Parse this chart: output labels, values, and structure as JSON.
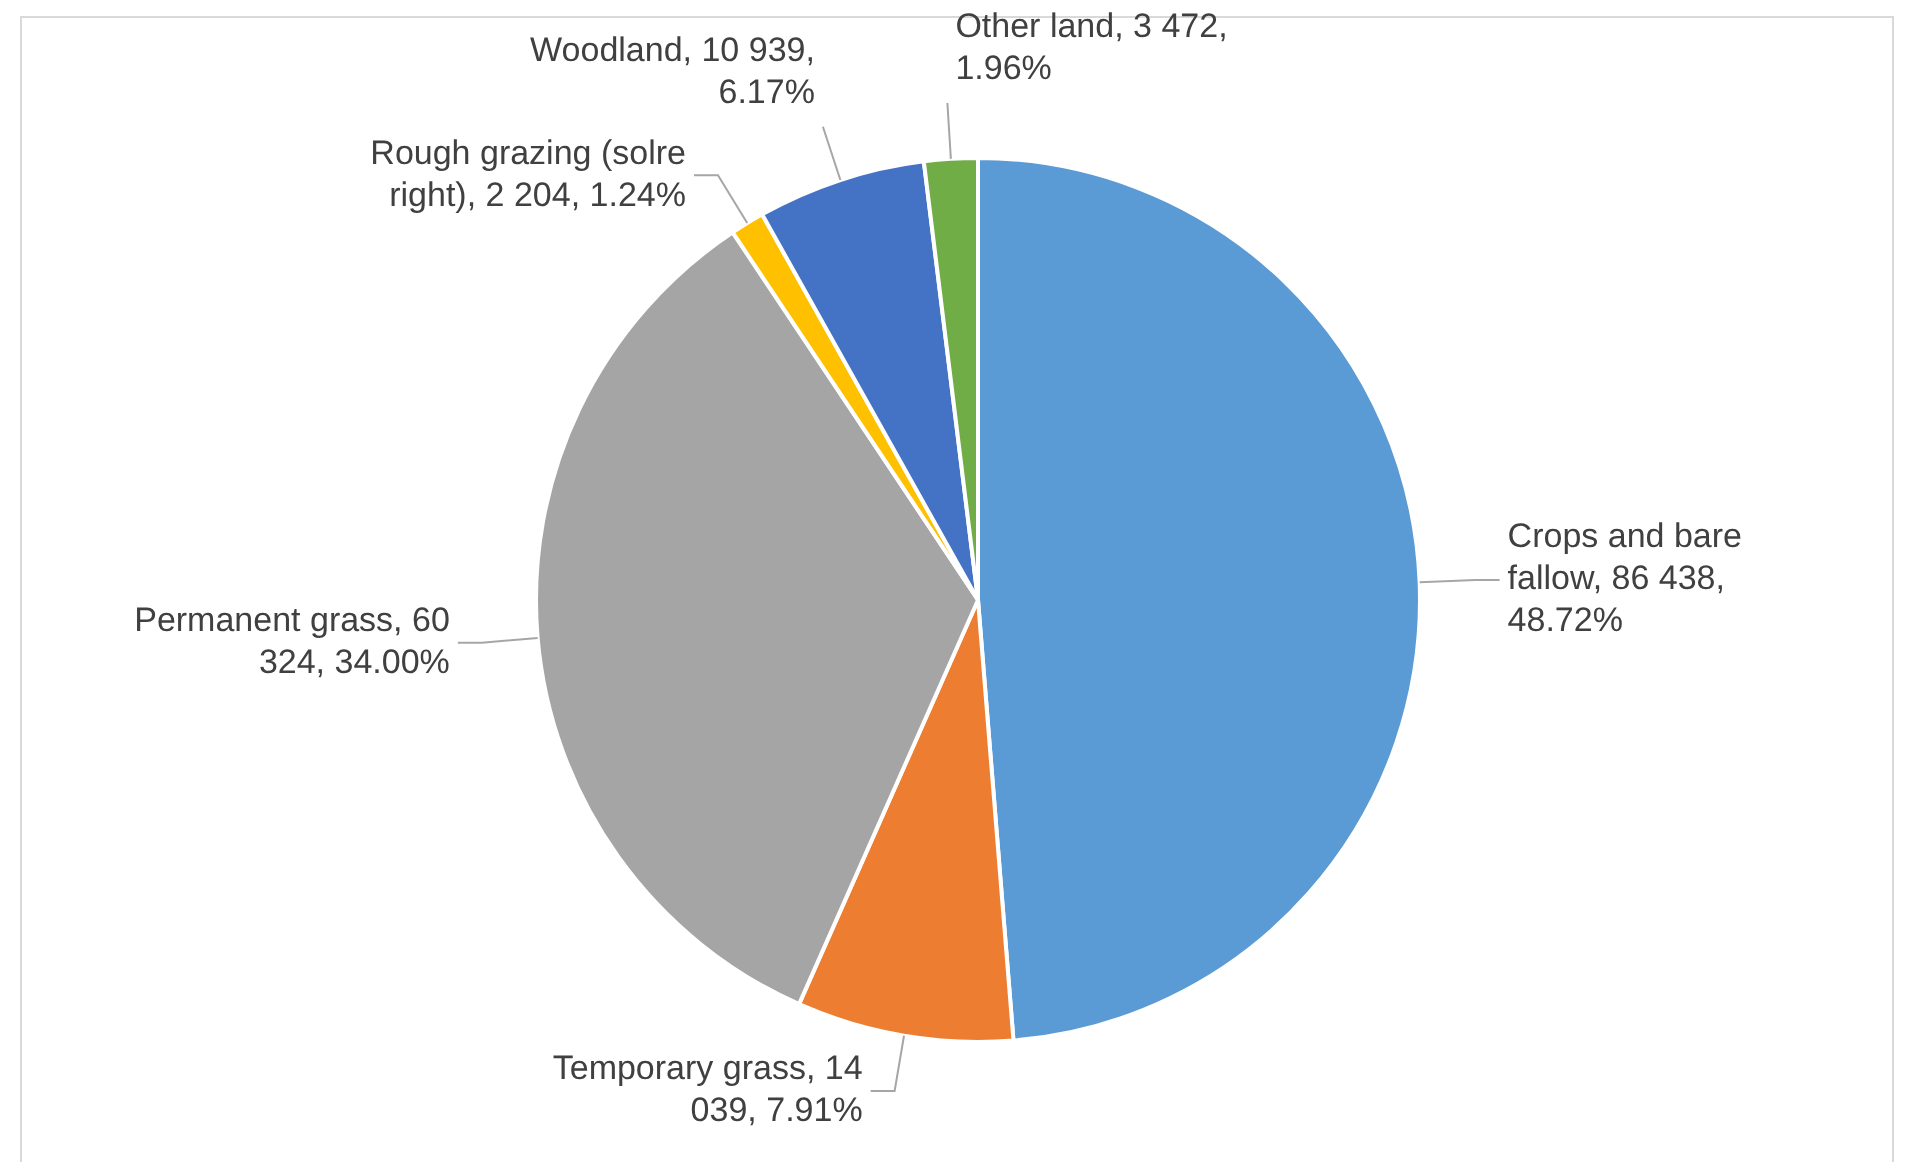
{
  "chart_data": {
    "type": "pie",
    "categories": [
      "Crops and bare fallow",
      "Temporary grass",
      "Permanent grass",
      "Rough grazing (solre right)",
      "Woodland",
      "Other land"
    ],
    "values": [
      86438,
      14039,
      60324,
      2204,
      10939,
      3472
    ],
    "value_labels": [
      "86 438, 48.72%",
      "14 039, 7.91%",
      "60 324, 34.00%",
      "2 204, 1.24%",
      "10 939, 6.17%",
      "3 472, 1.96%"
    ],
    "colors": [
      "#5b9bd5",
      "#ed7d31",
      "#a5a5a5",
      "#ffc000",
      "#4472c4",
      "#70ad47"
    ],
    "legend": false
  }
}
